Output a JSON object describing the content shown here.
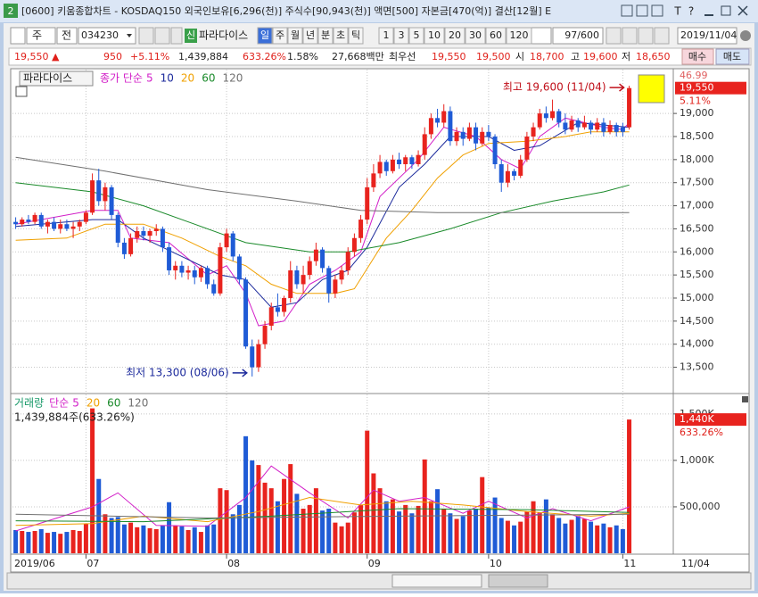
{
  "window": {
    "badge": "2",
    "title": "[0600] 키움종합차트 - KOSDAQ150 외국인보유[6,296(천)] 주식수[90,943(천)] 액면[500] 자본금[470(억)] 결산[12월] E",
    "font_button": "T",
    "help_button": "?"
  },
  "toolbar": {
    "market": "주",
    "prev": "전",
    "code": "034230",
    "new_badge": "신",
    "name": "파라다이스",
    "periods": [
      "일",
      "주",
      "월",
      "년",
      "분",
      "초",
      "틱"
    ],
    "intervals": [
      "1",
      "3",
      "5",
      "10",
      "20",
      "30",
      "60",
      "120"
    ],
    "count": "97/600",
    "date": "2019/11/04"
  },
  "quote": {
    "price": "19,550 ▲",
    "change": "950",
    "change_pct": "+5.11%",
    "volume": "1,439,884",
    "volume_ratio": "633.26%",
    "turnover": "1.58%",
    "amount": "27,668백만",
    "best_label": "최우선",
    "ask": "19,550",
    "bid": "19,500",
    "open_label": "시",
    "open": "18,700",
    "high_label": "고",
    "high": "19,600",
    "low_label": "저",
    "low": "18,650",
    "buy": "매수",
    "sell": "매도"
  },
  "chart_data": [
    {
      "type": "candlestick",
      "name": "파라다이스",
      "legend_prefix": "종가 단순",
      "up_color": "#e8231e",
      "down_color": "#1f5bd6",
      "xlim": [
        -0.5,
        102.9
      ],
      "ylim": [
        12950,
        19950
      ],
      "yticks": [
        {
          "value": 19000,
          "label": "19,000"
        },
        {
          "value": 18500,
          "label": "18,500"
        },
        {
          "value": 18000,
          "label": "18,000"
        },
        {
          "value": 17500,
          "label": "17,500"
        },
        {
          "value": 17000,
          "label": "17,000"
        },
        {
          "value": 16500,
          "label": "16,500"
        },
        {
          "value": 16000,
          "label": "16,000"
        },
        {
          "value": 15500,
          "label": "15,500"
        },
        {
          "value": 15000,
          "label": "15,000"
        },
        {
          "value": 14500,
          "label": "14,500"
        },
        {
          "value": 14000,
          "label": "14,000"
        },
        {
          "value": 13500,
          "label": "13,500"
        }
      ],
      "grid": true,
      "top_clipped_label": "46.99",
      "last_value": 19550,
      "last_label": "19,550",
      "last_change": "5.11%",
      "open": [
        16650,
        16600,
        16700,
        16650,
        16800,
        16550,
        16650,
        16500,
        16600,
        16500,
        16550,
        16650,
        16850,
        17550,
        17100,
        17400,
        16800,
        16200,
        15950,
        16300,
        16450,
        16350,
        16450,
        16500,
        16100,
        15600,
        15700,
        15550,
        15600,
        15450,
        15650,
        15300,
        15100,
        16100,
        16400,
        15900,
        15400,
        13950,
        13500,
        14000,
        14400,
        14800,
        14700,
        15000,
        15600,
        15300,
        15500,
        15800,
        16050,
        15650,
        15100,
        15400,
        15600,
        16000,
        16300,
        16700,
        17400,
        17700,
        17950,
        17750,
        18000,
        17900,
        18050,
        17900,
        18100,
        18550,
        18900,
        18800,
        19050,
        18400,
        18600,
        18450,
        18700,
        18350,
        18600,
        18500,
        17900,
        17500,
        17750,
        17650,
        18000,
        18500,
        18700,
        19000,
        18900,
        19050,
        18800,
        18650,
        18850,
        18700,
        18800,
        18650,
        18800,
        18600,
        18750,
        18700,
        18700
      ],
      "high": [
        16750,
        16750,
        16800,
        16850,
        16850,
        16700,
        16750,
        16700,
        16700,
        16650,
        16700,
        16900,
        17700,
        17800,
        17500,
        17450,
        16850,
        16300,
        16400,
        16550,
        16550,
        16500,
        16600,
        16550,
        16200,
        15800,
        15800,
        15700,
        15700,
        15700,
        15700,
        15400,
        16200,
        16500,
        16450,
        15950,
        15450,
        14100,
        14100,
        14500,
        14900,
        15100,
        15050,
        15800,
        15700,
        15700,
        15900,
        16200,
        16100,
        15700,
        15500,
        15700,
        16100,
        16400,
        16800,
        17600,
        17900,
        18100,
        18000,
        18100,
        18150,
        18100,
        18100,
        18200,
        18700,
        19000,
        19100,
        19200,
        19150,
        18700,
        18700,
        18800,
        18800,
        18700,
        18750,
        18550,
        18000,
        17900,
        17800,
        18100,
        18600,
        18800,
        19100,
        19150,
        19300,
        19100,
        19000,
        18950,
        18900,
        18950,
        18850,
        18900,
        18900,
        18850,
        18800,
        18800,
        19600
      ],
      "low": [
        16500,
        16550,
        16600,
        16600,
        16500,
        16400,
        16450,
        16400,
        16450,
        16300,
        16450,
        16600,
        16800,
        17000,
        16900,
        16700,
        16100,
        15850,
        15900,
        16200,
        16250,
        16200,
        16350,
        16000,
        15500,
        15400,
        15450,
        15400,
        15300,
        15350,
        15200,
        15050,
        15050,
        16000,
        15800,
        15300,
        13900,
        13300,
        13400,
        13900,
        14300,
        14600,
        14600,
        14900,
        15200,
        15100,
        15400,
        15700,
        15550,
        14900,
        15000,
        15300,
        15500,
        15900,
        16200,
        16600,
        17300,
        17600,
        17650,
        17700,
        17800,
        17750,
        17800,
        17850,
        18000,
        18450,
        18700,
        18700,
        18300,
        18300,
        18300,
        18400,
        18200,
        18300,
        18400,
        17800,
        17300,
        17400,
        17550,
        17600,
        17950,
        18400,
        18650,
        18800,
        18850,
        18700,
        18550,
        18600,
        18600,
        18650,
        18550,
        18600,
        18500,
        18550,
        18500,
        18500,
        18650
      ],
      "close": [
        16600,
        16700,
        16650,
        16800,
        16550,
        16650,
        16500,
        16600,
        16500,
        16550,
        16650,
        16850,
        17550,
        17100,
        17400,
        16800,
        16200,
        15950,
        16300,
        16450,
        16350,
        16450,
        16500,
        16100,
        15600,
        15700,
        15550,
        15600,
        15450,
        15650,
        15300,
        15100,
        16100,
        16400,
        15900,
        15400,
        13950,
        13500,
        14000,
        14400,
        14800,
        14700,
        15000,
        15600,
        15300,
        15500,
        15800,
        16050,
        15650,
        15100,
        15400,
        15600,
        16000,
        16300,
        16700,
        17400,
        17700,
        17950,
        17750,
        18000,
        17900,
        18050,
        17900,
        18100,
        18550,
        18900,
        18800,
        19050,
        18400,
        18600,
        18450,
        18700,
        18350,
        18600,
        18500,
        17900,
        17500,
        17750,
        17650,
        18000,
        18500,
        18700,
        19000,
        18900,
        19050,
        18800,
        18650,
        18850,
        18700,
        18800,
        18650,
        18800,
        18600,
        18750,
        18600,
        18600,
        19550
      ],
      "series": [
        {
          "name": "5",
          "color": "#d21fc8",
          "x": [
            0,
            12,
            16,
            18,
            24,
            30,
            33,
            36,
            38,
            42,
            46,
            50,
            54,
            57,
            63,
            67,
            72,
            76,
            79,
            82,
            86,
            92,
            95,
            96
          ],
          "values": [
            16600,
            16900,
            16900,
            16300,
            16200,
            15500,
            15700,
            15100,
            14400,
            14500,
            15300,
            15600,
            16000,
            17200,
            18000,
            18700,
            18500,
            18000,
            17800,
            18500,
            18900,
            18700,
            18650,
            18800
          ]
        },
        {
          "name": "10",
          "color": "#1c2a9c",
          "x": [
            0,
            12,
            16,
            20,
            26,
            32,
            36,
            40,
            44,
            48,
            52,
            55,
            60,
            64,
            68,
            74,
            78,
            82,
            88,
            96
          ],
          "values": [
            16550,
            16700,
            16700,
            16300,
            15900,
            15500,
            15400,
            14800,
            14900,
            15400,
            15600,
            16100,
            17400,
            17900,
            18500,
            18500,
            18200,
            18300,
            18800,
            18700
          ]
        },
        {
          "name": "20",
          "color": "#f0a000",
          "x": [
            0,
            8,
            14,
            20,
            26,
            32,
            36,
            40,
            44,
            50,
            53,
            58,
            62,
            66,
            70,
            74,
            80,
            86,
            90,
            96
          ],
          "values": [
            16250,
            16300,
            16600,
            16600,
            16300,
            15900,
            15700,
            15300,
            15100,
            15100,
            15200,
            16300,
            16900,
            17600,
            18100,
            18350,
            18400,
            18500,
            18600,
            18600
          ]
        },
        {
          "name": "60",
          "color": "#1a8a2a",
          "x": [
            0,
            12,
            20,
            28,
            36,
            46,
            52,
            60,
            68,
            76,
            84,
            92,
            96
          ],
          "values": [
            17500,
            17300,
            17000,
            16600,
            16200,
            16000,
            16000,
            16200,
            16500,
            16850,
            17100,
            17300,
            17450
          ]
        },
        {
          "name": "120",
          "color": "#707070",
          "x": [
            0,
            14,
            30,
            44,
            54,
            66,
            80,
            96
          ],
          "values": [
            18050,
            17750,
            17350,
            17100,
            16900,
            16850,
            16850,
            16850
          ]
        }
      ],
      "annotations": [
        {
          "text": "최고 19,600 (11/04)",
          "index": 96,
          "value": 19600,
          "color": "#c0101a"
        },
        {
          "text": "최저 13,300 (08/06)",
          "index": 37,
          "value": 13300,
          "color": "#1c2a9c"
        }
      ]
    },
    {
      "type": "bar",
      "legend_label": "거래량",
      "label_color": "#1a9a6a",
      "legend_prefix": "단순",
      "up_color": "#e8231e",
      "down_color": "#1f5bd6",
      "info": "1,439,884주(633.26%)",
      "xlim": [
        -0.5,
        102.9
      ],
      "ylim": [
        0,
        1710000
      ],
      "yticks": [
        {
          "value": 500000,
          "label": "500,000"
        },
        {
          "value": 1000000,
          "label": "1,000K"
        },
        {
          "value": 1500000,
          "label": "1,500K"
        }
      ],
      "xticks": [
        {
          "value": 0,
          "label": "2019/06"
        },
        {
          "value": 11,
          "label": "07"
        },
        {
          "value": 33,
          "label": "08"
        },
        {
          "value": 55,
          "label": "09"
        },
        {
          "value": 74,
          "label": "10"
        },
        {
          "value": 95,
          "label": "11"
        }
      ],
      "last_date": "11/04",
      "last_label": "1,440K",
      "last_ratio": "633.26%",
      "values": [
        250000,
        240000,
        230000,
        240000,
        260000,
        220000,
        230000,
        210000,
        230000,
        250000,
        240000,
        320000,
        1560000,
        800000,
        420000,
        380000,
        390000,
        310000,
        330000,
        280000,
        300000,
        270000,
        260000,
        300000,
        550000,
        300000,
        290000,
        250000,
        280000,
        230000,
        300000,
        310000,
        700000,
        680000,
        420000,
        520000,
        1260000,
        1000000,
        950000,
        760000,
        700000,
        560000,
        800000,
        960000,
        640000,
        480000,
        520000,
        700000,
        460000,
        480000,
        330000,
        290000,
        330000,
        440000,
        520000,
        1320000,
        860000,
        700000,
        560000,
        580000,
        450000,
        520000,
        430000,
        510000,
        1010000,
        560000,
        690000,
        480000,
        430000,
        370000,
        400000,
        460000,
        480000,
        820000,
        490000,
        600000,
        380000,
        350000,
        300000,
        340000,
        450000,
        560000,
        440000,
        580000,
        420000,
        380000,
        320000,
        360000,
        400000,
        370000,
        340000,
        300000,
        320000,
        280000,
        300000,
        260000,
        1439884
      ],
      "series": [
        {
          "name": "5",
          "color": "#d21fc8",
          "x": [
            0,
            12,
            16,
            22,
            30,
            36,
            40,
            46,
            52,
            56,
            60,
            64,
            70,
            74,
            80,
            84,
            90,
            96
          ],
          "values": [
            240000,
            500000,
            650000,
            300000,
            290000,
            600000,
            940000,
            650000,
            380000,
            680000,
            560000,
            600000,
            430000,
            560000,
            380000,
            480000,
            350000,
            500000
          ]
        },
        {
          "name": "20",
          "color": "#f0a000",
          "x": [
            0,
            12,
            20,
            30,
            38,
            46,
            54,
            62,
            70,
            80,
            90,
            96
          ],
          "values": [
            300000,
            320000,
            400000,
            340000,
            450000,
            600000,
            520000,
            560000,
            520000,
            450000,
            400000,
            430000
          ]
        },
        {
          "name": "60",
          "color": "#1a8a2a",
          "x": [
            0,
            20,
            40,
            60,
            80,
            96
          ],
          "values": [
            350000,
            340000,
            400000,
            480000,
            470000,
            440000
          ]
        },
        {
          "name": "120",
          "color": "#707070",
          "x": [
            0,
            30,
            60,
            96
          ],
          "values": [
            420000,
            380000,
            400000,
            420000
          ]
        }
      ]
    }
  ]
}
